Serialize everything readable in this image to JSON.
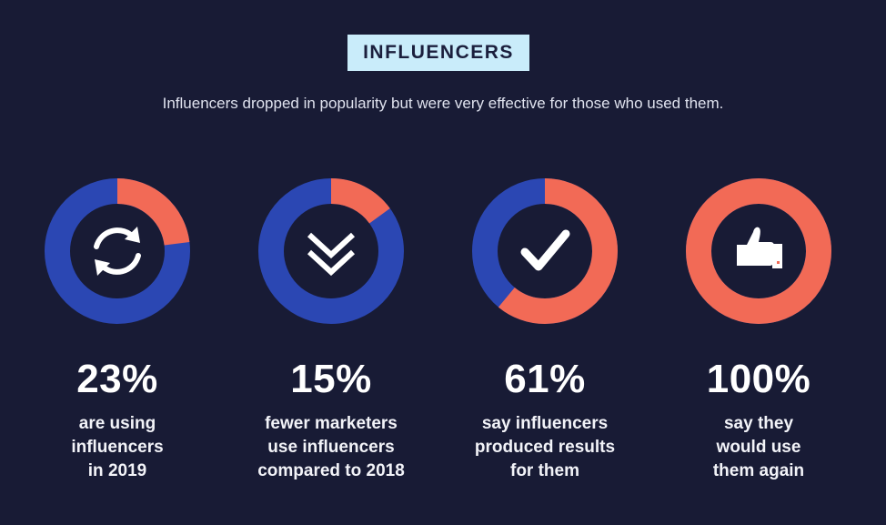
{
  "title": "INFLUENCERS",
  "subtitle": "Influencers dropped in popularity but were very effective for those who used them.",
  "colors": {
    "background": "#181b35",
    "blue": "#2b47b3",
    "coral": "#f26a56",
    "badge": "#c9ecfa"
  },
  "stats": [
    {
      "value": "23%",
      "label": "are using\ninfluencers\nin 2019",
      "icon": "refresh-icon"
    },
    {
      "value": "15%",
      "label": "fewer marketers\nuse    influencers\ncompared to 2018",
      "icon": "double-chevron-down-icon"
    },
    {
      "value": "61%",
      "label": "say influencers\nproduced results\nfor them",
      "icon": "checkmark-icon"
    },
    {
      "value": "100%",
      "label": "say they\nwould use\nthem again",
      "icon": "thumbs-up-icon"
    }
  ],
  "chart_data": {
    "type": "pie",
    "charts": [
      {
        "highlight_percent": 23,
        "highlight_color": "#f26a56",
        "rest_color": "#2b47b3"
      },
      {
        "highlight_percent": 15,
        "highlight_color": "#f26a56",
        "rest_color": "#2b47b3"
      },
      {
        "highlight_percent": 61,
        "highlight_color": "#f26a56",
        "rest_color": "#2b47b3"
      },
      {
        "highlight_percent": 100,
        "highlight_color": "#f26a56",
        "rest_color": "#2b47b3"
      }
    ]
  }
}
